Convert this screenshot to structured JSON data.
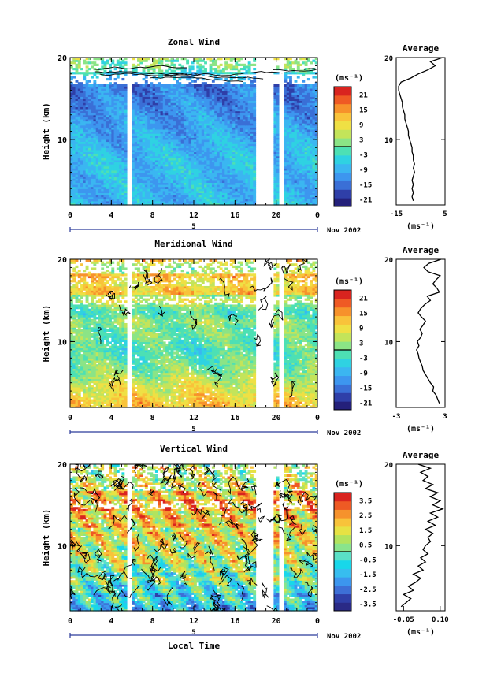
{
  "shared": {
    "xlabel": "Local Time",
    "ylabel": "Height (km)",
    "x_ticks": [
      "0",
      "4",
      "8",
      "12",
      "16",
      "20",
      "0"
    ],
    "y_ticks": [
      "10",
      "20"
    ],
    "date_label": "Nov 2002",
    "date_marker": "5",
    "unit_label": "(ms⁻¹)",
    "avg_title": "Average"
  },
  "chart_data": [
    {
      "type": "heatmap",
      "title": "Zonal Wind",
      "xlabel": "",
      "ylabel": "Height (km)",
      "xlim": [
        0,
        24
      ],
      "ylim": [
        2,
        20
      ],
      "colorbar_ticks": [
        "21",
        "15",
        "9",
        "3",
        "-3",
        "-9",
        "-15",
        "-21"
      ],
      "colorbar_range": [
        -24,
        24
      ],
      "colorbar_zero_contour": true,
      "avg_profile": {
        "xlim": [
          -15,
          5
        ],
        "x_ticks": [
          "-15",
          "5"
        ],
        "y_ticks": [
          "10",
          "20"
        ],
        "heights": [
          2.5,
          3,
          3.5,
          4,
          4.5,
          5,
          5.5,
          6,
          6.5,
          7,
          7.5,
          8,
          8.5,
          9,
          9.5,
          10,
          10.5,
          11,
          11.5,
          12,
          12.5,
          13,
          13.5,
          14,
          14.5,
          15,
          15.5,
          16,
          16.5,
          17,
          17.5,
          18,
          18.5,
          19,
          19.5,
          20
        ],
        "values": [
          -8,
          -8.5,
          -8,
          -8.5,
          -8,
          -8.5,
          -8,
          -7.5,
          -8,
          -7.5,
          -8,
          -8,
          -8.5,
          -8.5,
          -9,
          -9.5,
          -10,
          -10,
          -10.5,
          -11,
          -11.5,
          -11.5,
          -12,
          -12.5,
          -12.5,
          -13,
          -13.5,
          -14,
          -14,
          -13,
          -9,
          -6,
          -2,
          1,
          -1,
          4
        ]
      }
    },
    {
      "type": "heatmap",
      "title": "Meridional Wind",
      "xlabel": "",
      "ylabel": "Height (km)",
      "xlim": [
        0,
        24
      ],
      "ylim": [
        2,
        20
      ],
      "colorbar_ticks": [
        "21",
        "15",
        "9",
        "3",
        "-3",
        "-9",
        "-15",
        "-21"
      ],
      "colorbar_range": [
        -24,
        24
      ],
      "colorbar_zero_contour": true,
      "avg_profile": {
        "xlim": [
          -3,
          3
        ],
        "x_ticks": [
          "-3",
          "3"
        ],
        "y_ticks": [
          "10",
          "20"
        ],
        "heights": [
          2.5,
          3,
          3.5,
          4,
          4.5,
          5,
          5.5,
          6,
          6.5,
          7,
          7.5,
          8,
          8.5,
          9,
          9.5,
          10,
          10.5,
          11,
          11.5,
          12,
          12.5,
          13,
          13.5,
          14,
          14.5,
          15,
          15.5,
          16,
          16.5,
          17,
          17.5,
          18,
          18.5,
          19,
          19.5,
          20
        ],
        "values": [
          2.3,
          2.1,
          1.9,
          1.5,
          1.6,
          1.2,
          0.9,
          0.6,
          0.3,
          0.2,
          0.0,
          -0.2,
          -0.3,
          -0.5,
          -0.2,
          -0.4,
          0.0,
          0.2,
          -0.1,
          0.3,
          0.6,
          0.1,
          -0.3,
          0.0,
          0.5,
          1.2,
          0.8,
          2.3,
          2.0,
          1.5,
          1.9,
          2.4,
          0.9,
          0.4,
          1.0,
          2.5
        ]
      }
    },
    {
      "type": "heatmap",
      "title": "Vertical Wind",
      "xlabel": "Local Time",
      "ylabel": "Height (km)",
      "xlim": [
        0,
        24
      ],
      "ylim": [
        2,
        20
      ],
      "colorbar_ticks": [
        "3.5",
        "2.5",
        "1.5",
        "0.5",
        "-0.5",
        "-1.5",
        "-2.5",
        "-3.5"
      ],
      "colorbar_range": [
        -4,
        4
      ],
      "colorbar_zero_contour": true,
      "avg_profile": {
        "xlim": [
          -0.08,
          0.12
        ],
        "x_ticks": [
          "-0.05",
          "0.10"
        ],
        "y_ticks": [
          "10",
          "20"
        ],
        "heights": [
          2.5,
          3,
          3.5,
          4,
          4.5,
          5,
          5.5,
          6,
          6.5,
          7,
          7.5,
          8,
          8.5,
          9,
          9.5,
          10,
          10.5,
          11,
          11.5,
          12,
          12.5,
          13,
          13.5,
          14,
          14.5,
          15,
          15.5,
          16,
          16.5,
          17,
          17.5,
          18,
          18.5,
          19,
          19.5,
          20
        ],
        "values": [
          -0.06,
          -0.04,
          -0.02,
          -0.05,
          -0.01,
          -0.03,
          0.0,
          0.02,
          -0.01,
          0.03,
          0.01,
          0.04,
          0.02,
          0.05,
          0.03,
          0.04,
          0.06,
          0.05,
          0.07,
          0.04,
          0.08,
          0.05,
          0.09,
          0.06,
          0.11,
          0.07,
          0.1,
          0.06,
          0.09,
          0.04,
          0.07,
          0.03,
          0.05,
          0.02,
          0.06,
          0.01
        ]
      }
    }
  ]
}
